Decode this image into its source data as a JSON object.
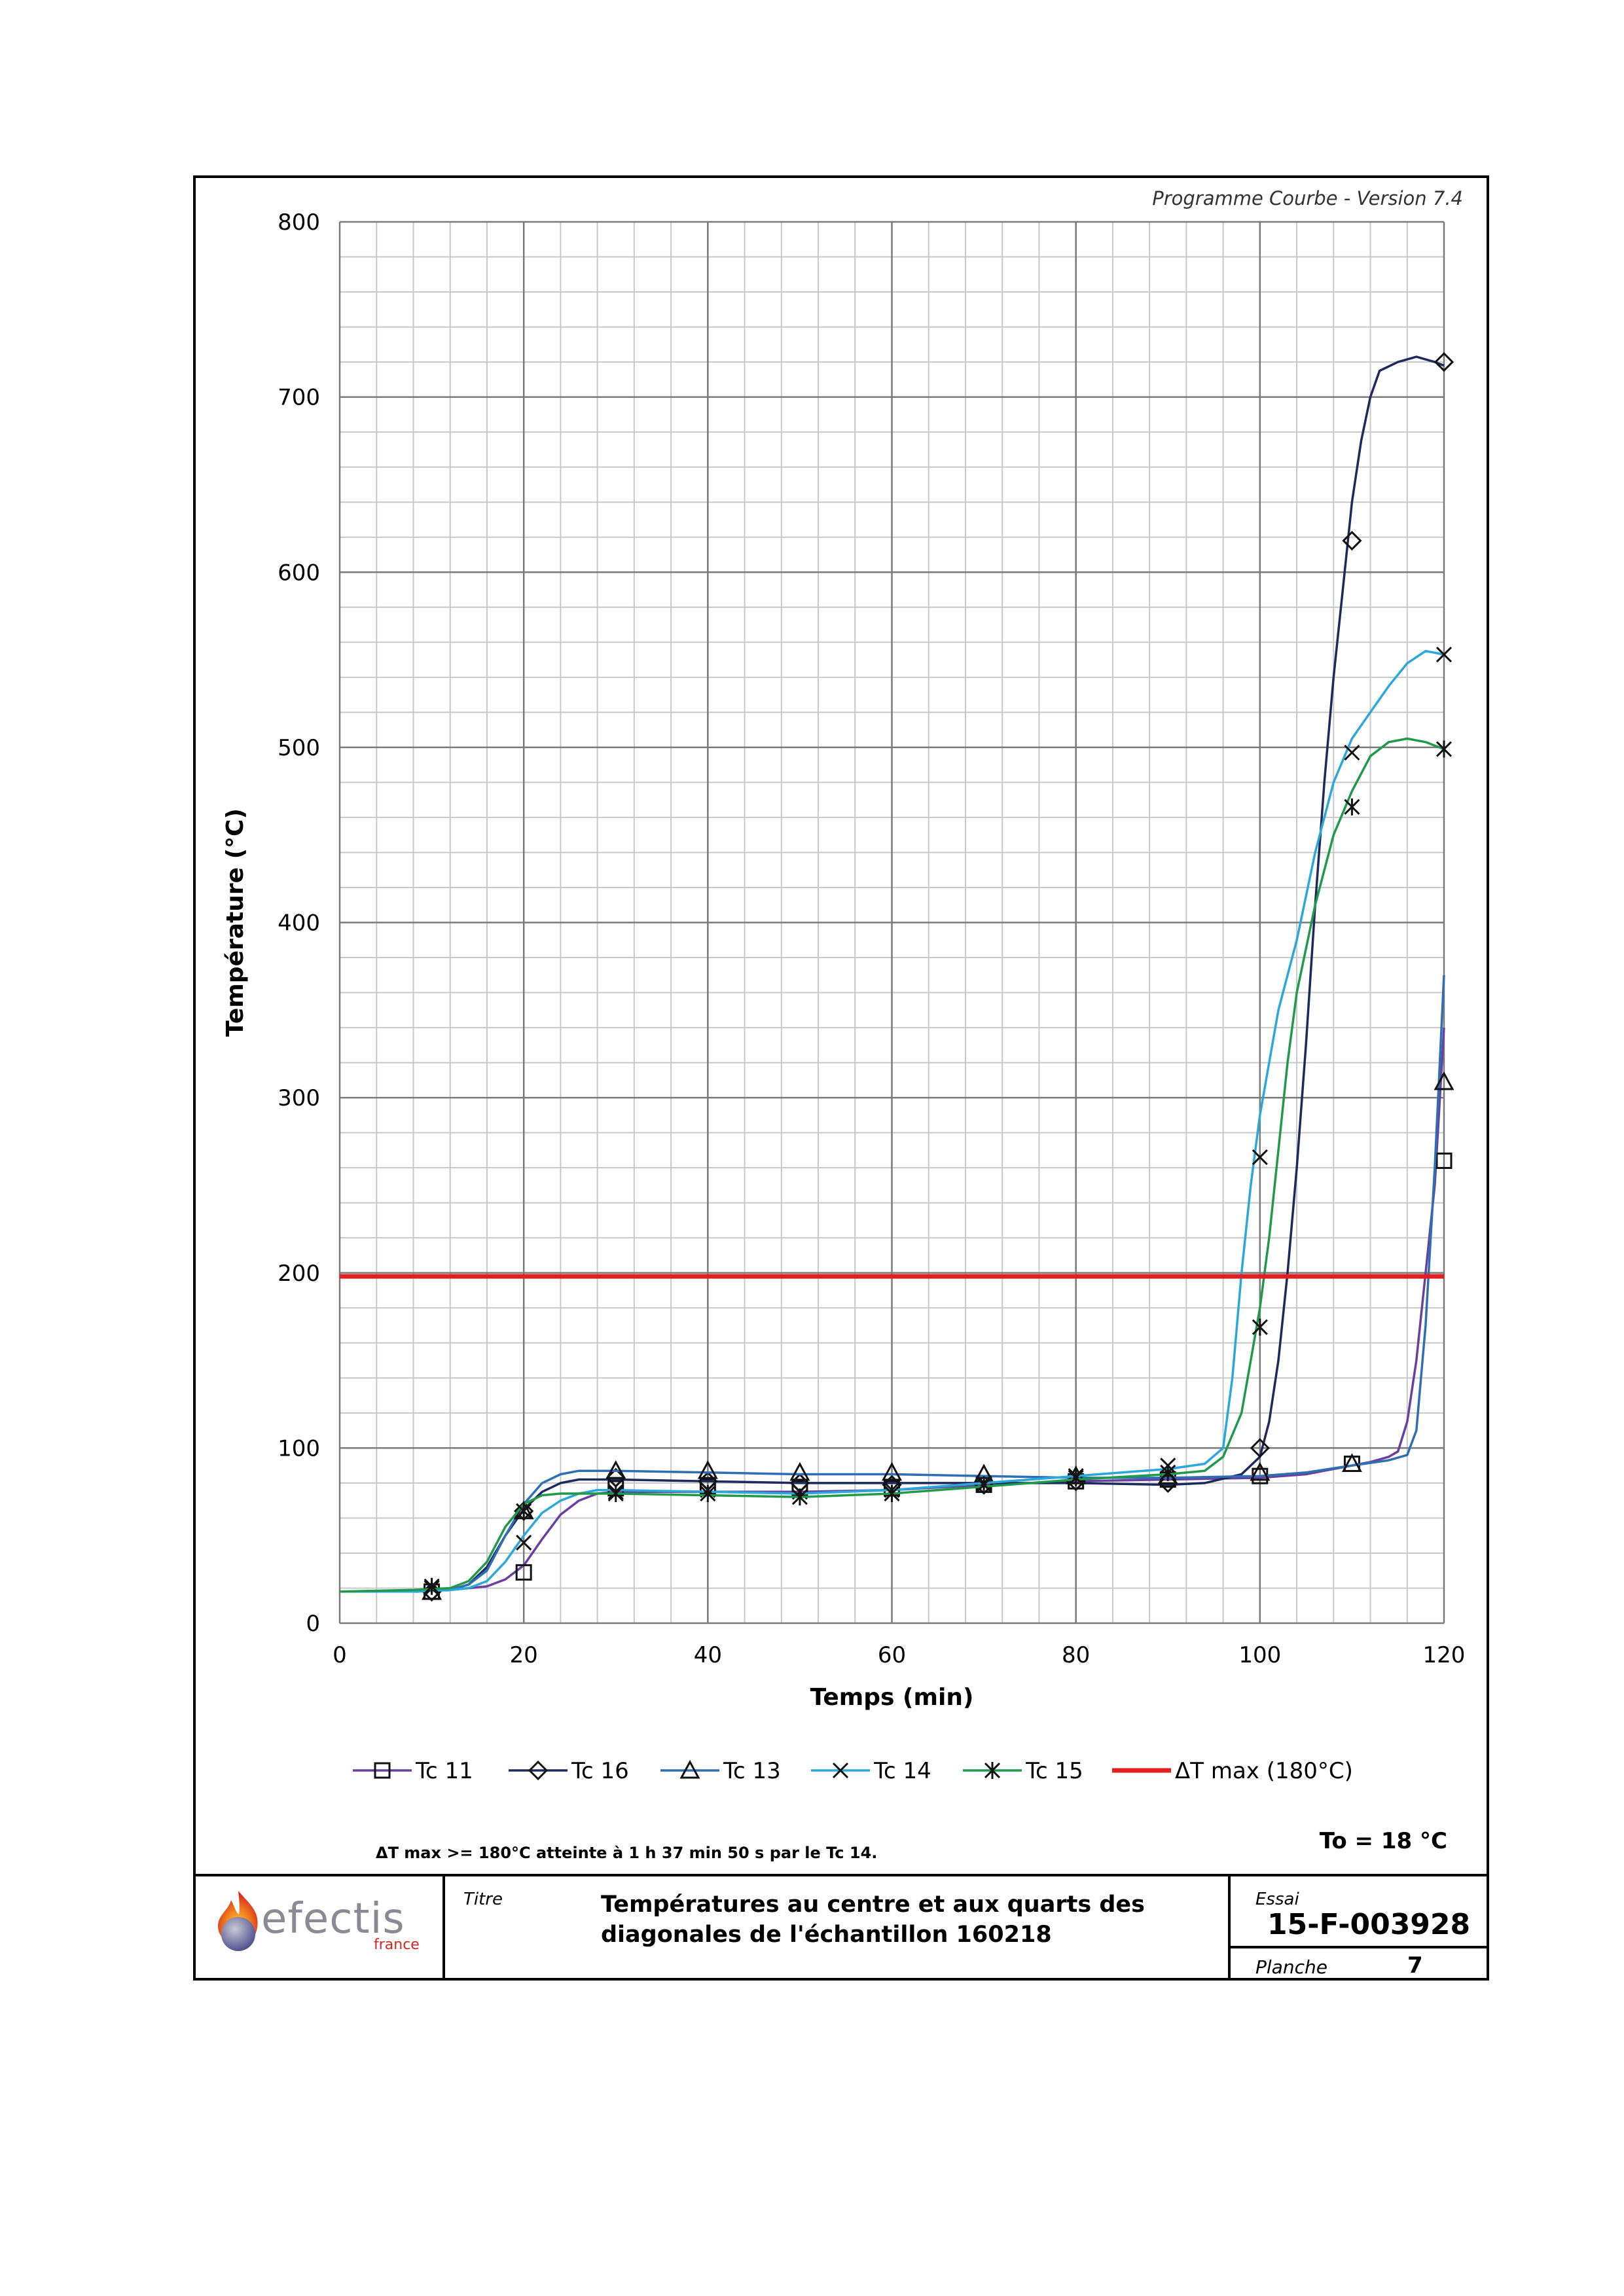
{
  "program_version": "Programme Courbe  - Version 7.4",
  "footnote": "ΔT max >= 180°C atteinte à 1 h 37 min 50 s  par le Tc 14.",
  "ambient": "To = 18 °C",
  "titleblock": {
    "logo_word": "efectis",
    "logo_sub": "france",
    "title_label": "Titre",
    "title_line1": "Températures au centre et aux quarts des",
    "title_line2": "diagonales de l'échantillon 160218",
    "essai_label": "Essai",
    "essai_value": "15-F-003928",
    "planche_label": "Planche",
    "planche_value": "7"
  },
  "chart_data": {
    "type": "line",
    "title": "",
    "xlabel": "Temps (min)",
    "ylabel": "Température (°C)",
    "xlim": [
      0,
      120
    ],
    "ylim": [
      0,
      800
    ],
    "x_ticks": [
      0,
      20,
      40,
      60,
      80,
      100,
      120
    ],
    "y_ticks": [
      0,
      100,
      200,
      300,
      400,
      500,
      600,
      700,
      800
    ],
    "grid": true,
    "legend_position": "bottom",
    "series": [
      {
        "name": "Tc 11",
        "color": "#6a3fa0",
        "marker": "square",
        "points": [
          [
            0,
            18
          ],
          [
            8,
            18
          ],
          [
            12,
            19
          ],
          [
            16,
            21
          ],
          [
            18,
            25
          ],
          [
            20,
            33
          ],
          [
            22,
            48
          ],
          [
            24,
            62
          ],
          [
            26,
            70
          ],
          [
            28,
            74
          ],
          [
            30,
            75
          ],
          [
            40,
            75
          ],
          [
            50,
            75
          ],
          [
            60,
            76
          ],
          [
            70,
            79
          ],
          [
            80,
            81
          ],
          [
            90,
            82
          ],
          [
            100,
            83
          ],
          [
            105,
            85
          ],
          [
            110,
            90
          ],
          [
            112,
            92
          ],
          [
            114,
            95
          ],
          [
            115,
            98
          ],
          [
            116,
            115
          ],
          [
            117,
            150
          ],
          [
            118,
            200
          ],
          [
            119,
            250
          ],
          [
            120,
            340
          ]
        ],
        "markers": [
          [
            10,
            18
          ],
          [
            20,
            29
          ],
          [
            30,
            77
          ],
          [
            40,
            78
          ],
          [
            50,
            77
          ],
          [
            60,
            77
          ],
          [
            70,
            79
          ],
          [
            80,
            81
          ],
          [
            90,
            82
          ],
          [
            100,
            84
          ],
          [
            110,
            91
          ],
          [
            120,
            264
          ]
        ]
      },
      {
        "name": "Tc 16",
        "color": "#1c2a5e",
        "marker": "diamond",
        "points": [
          [
            0,
            18
          ],
          [
            8,
            18
          ],
          [
            12,
            19
          ],
          [
            14,
            22
          ],
          [
            16,
            32
          ],
          [
            18,
            50
          ],
          [
            20,
            65
          ],
          [
            22,
            75
          ],
          [
            24,
            80
          ],
          [
            26,
            82
          ],
          [
            30,
            82
          ],
          [
            40,
            81
          ],
          [
            50,
            80
          ],
          [
            60,
            80
          ],
          [
            70,
            80
          ],
          [
            80,
            80
          ],
          [
            90,
            79
          ],
          [
            94,
            80
          ],
          [
            98,
            85
          ],
          [
            100,
            95
          ],
          [
            101,
            115
          ],
          [
            102,
            150
          ],
          [
            103,
            200
          ],
          [
            104,
            260
          ],
          [
            105,
            330
          ],
          [
            106,
            410
          ],
          [
            107,
            480
          ],
          [
            108,
            540
          ],
          [
            109,
            590
          ],
          [
            110,
            640
          ],
          [
            111,
            675
          ],
          [
            112,
            700
          ],
          [
            113,
            715
          ],
          [
            115,
            720
          ],
          [
            117,
            723
          ],
          [
            119,
            720
          ],
          [
            120,
            718
          ]
        ],
        "markers": [
          [
            10,
            18
          ],
          [
            20,
            64
          ],
          [
            30,
            83
          ],
          [
            40,
            81
          ],
          [
            50,
            80
          ],
          [
            60,
            79
          ],
          [
            70,
            79
          ],
          [
            80,
            81
          ],
          [
            90,
            80
          ],
          [
            100,
            100
          ],
          [
            110,
            618
          ],
          [
            120,
            720
          ]
        ]
      },
      {
        "name": "Tc 13",
        "color": "#2e6fb3",
        "marker": "triangle",
        "points": [
          [
            0,
            18
          ],
          [
            8,
            18
          ],
          [
            12,
            19
          ],
          [
            14,
            22
          ],
          [
            16,
            30
          ],
          [
            18,
            50
          ],
          [
            20,
            68
          ],
          [
            22,
            80
          ],
          [
            24,
            85
          ],
          [
            26,
            87
          ],
          [
            30,
            87
          ],
          [
            40,
            86
          ],
          [
            50,
            85
          ],
          [
            60,
            85
          ],
          [
            70,
            84
          ],
          [
            80,
            83
          ],
          [
            90,
            83
          ],
          [
            100,
            84
          ],
          [
            105,
            86
          ],
          [
            110,
            90
          ],
          [
            114,
            93
          ],
          [
            116,
            96
          ],
          [
            117,
            110
          ],
          [
            118,
            170
          ],
          [
            119,
            260
          ],
          [
            120,
            370
          ]
        ],
        "markers": [
          [
            10,
            18
          ],
          [
            20,
            64
          ],
          [
            30,
            87
          ],
          [
            40,
            87
          ],
          [
            50,
            86
          ],
          [
            60,
            86
          ],
          [
            70,
            85
          ],
          [
            80,
            84
          ],
          [
            90,
            84
          ],
          [
            100,
            86
          ],
          [
            110,
            91
          ],
          [
            120,
            309
          ]
        ]
      },
      {
        "name": "Tc 14",
        "color": "#2aa8dc",
        "marker": "x",
        "points": [
          [
            0,
            18
          ],
          [
            8,
            18
          ],
          [
            12,
            19
          ],
          [
            14,
            20
          ],
          [
            16,
            24
          ],
          [
            18,
            35
          ],
          [
            20,
            50
          ],
          [
            22,
            63
          ],
          [
            24,
            70
          ],
          [
            26,
            74
          ],
          [
            28,
            76
          ],
          [
            30,
            76
          ],
          [
            40,
            75
          ],
          [
            50,
            74
          ],
          [
            60,
            76
          ],
          [
            70,
            80
          ],
          [
            80,
            84
          ],
          [
            85,
            86
          ],
          [
            90,
            88
          ],
          [
            94,
            91
          ],
          [
            96,
            100
          ],
          [
            97,
            140
          ],
          [
            98,
            200
          ],
          [
            99,
            250
          ],
          [
            100,
            290
          ],
          [
            101,
            320
          ],
          [
            102,
            350
          ],
          [
            104,
            390
          ],
          [
            106,
            440
          ],
          [
            108,
            480
          ],
          [
            110,
            505
          ],
          [
            112,
            520
          ],
          [
            114,
            535
          ],
          [
            116,
            548
          ],
          [
            118,
            555
          ],
          [
            120,
            553
          ]
        ],
        "markers": [
          [
            10,
            20
          ],
          [
            20,
            46
          ],
          [
            30,
            75
          ],
          [
            40,
            76
          ],
          [
            50,
            75
          ],
          [
            60,
            76
          ],
          [
            70,
            80
          ],
          [
            80,
            84
          ],
          [
            90,
            90
          ],
          [
            100,
            266
          ],
          [
            110,
            497
          ],
          [
            120,
            553
          ]
        ]
      },
      {
        "name": "Tc 15",
        "color": "#1f9a4a",
        "marker": "asterisk",
        "points": [
          [
            0,
            18
          ],
          [
            8,
            19
          ],
          [
            12,
            20
          ],
          [
            14,
            24
          ],
          [
            16,
            35
          ],
          [
            18,
            55
          ],
          [
            20,
            68
          ],
          [
            22,
            73
          ],
          [
            24,
            74
          ],
          [
            26,
            74
          ],
          [
            30,
            74
          ],
          [
            40,
            73
          ],
          [
            50,
            72
          ],
          [
            60,
            74
          ],
          [
            70,
            78
          ],
          [
            80,
            82
          ],
          [
            90,
            85
          ],
          [
            94,
            87
          ],
          [
            96,
            95
          ],
          [
            98,
            120
          ],
          [
            99,
            150
          ],
          [
            100,
            180
          ],
          [
            101,
            220
          ],
          [
            102,
            270
          ],
          [
            103,
            320
          ],
          [
            104,
            360
          ],
          [
            106,
            410
          ],
          [
            108,
            450
          ],
          [
            110,
            475
          ],
          [
            112,
            495
          ],
          [
            114,
            503
          ],
          [
            116,
            505
          ],
          [
            118,
            503
          ],
          [
            120,
            499
          ]
        ],
        "markers": [
          [
            10,
            21
          ],
          [
            20,
            64
          ],
          [
            30,
            74
          ],
          [
            40,
            74
          ],
          [
            50,
            72
          ],
          [
            60,
            74
          ],
          [
            70,
            79
          ],
          [
            80,
            83
          ],
          [
            90,
            86
          ],
          [
            100,
            169
          ],
          [
            110,
            466
          ],
          [
            120,
            499
          ]
        ]
      },
      {
        "name": "ΔT max (180°C)",
        "color": "#e02020",
        "marker": "none",
        "points": [
          [
            0,
            198
          ],
          [
            120,
            198
          ]
        ],
        "markers": []
      }
    ]
  }
}
